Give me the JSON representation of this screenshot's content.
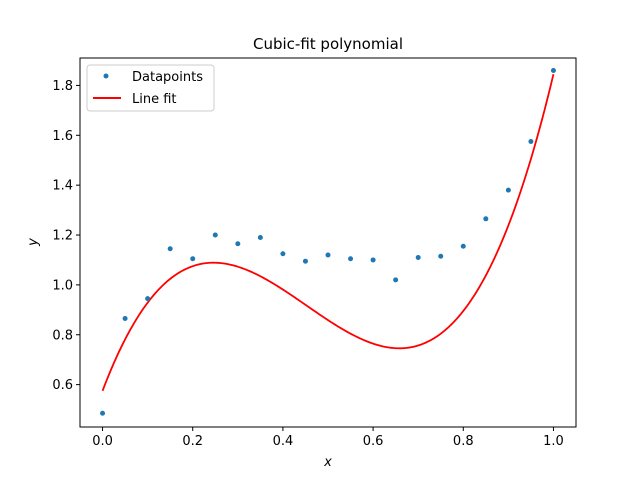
{
  "chart_data": {
    "type": "scatter",
    "title": "Cubic-fit polynomial",
    "xlabel": "x",
    "ylabel": "y",
    "xlim": [
      -0.05,
      1.05
    ],
    "ylim": [
      0.43,
      1.91
    ],
    "xticks": [
      0.0,
      0.2,
      0.4,
      0.6,
      0.8,
      1.0
    ],
    "xtick_labels": [
      "0.0",
      "0.2",
      "0.4",
      "0.6",
      "0.8",
      "1.0"
    ],
    "yticks": [
      0.6,
      0.8,
      1.0,
      1.2,
      1.4,
      1.6,
      1.8
    ],
    "ytick_labels": [
      "0.6",
      "0.8",
      "1.0",
      "1.2",
      "1.4",
      "1.6",
      "1.8"
    ],
    "grid": false,
    "legend_position": "top-left",
    "series": [
      {
        "name": "Datapoints",
        "kind": "scatter",
        "color": "#1f77b4",
        "x": [
          0.0,
          0.05,
          0.1,
          0.15,
          0.2,
          0.25,
          0.3,
          0.35,
          0.4,
          0.45,
          0.5,
          0.55,
          0.6,
          0.65,
          0.7,
          0.75,
          0.8,
          0.85,
          0.9,
          0.95,
          1.0
        ],
        "y": [
          0.485,
          0.865,
          0.945,
          1.145,
          1.105,
          1.2,
          1.165,
          1.19,
          1.125,
          1.095,
          1.12,
          1.105,
          1.1,
          1.02,
          1.11,
          1.115,
          1.155,
          1.265,
          1.38,
          1.575,
          1.86
        ]
      },
      {
        "name": "Line fit",
        "kind": "line",
        "color": "#ff0000",
        "polynomial_coefficients": [
          0.575,
          4.77,
          -13.31,
          9.81
        ]
      }
    ]
  }
}
